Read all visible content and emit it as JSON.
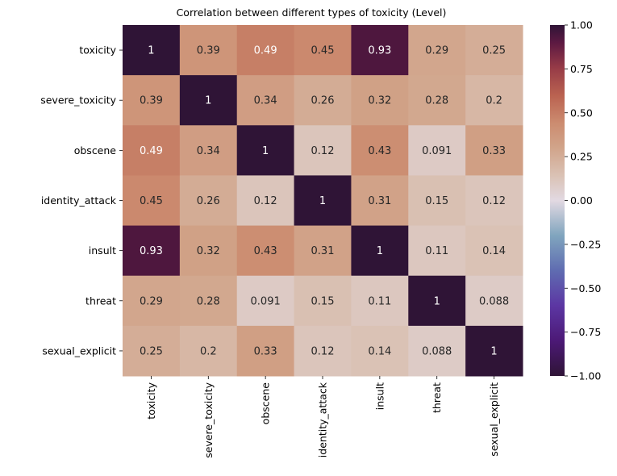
{
  "chart_data": {
    "type": "heatmap",
    "title": "Correlation between different types of toxicity (Level)",
    "xlabel": "",
    "ylabel": "",
    "categories": [
      "toxicity",
      "severe_toxicity",
      "obscene",
      "identity_attack",
      "insult",
      "threat",
      "sexual_explicit"
    ],
    "value_labels": [
      [
        "1",
        "0.39",
        "0.49",
        "0.45",
        "0.93",
        "0.29",
        "0.25"
      ],
      [
        "0.39",
        "1",
        "0.34",
        "0.26",
        "0.32",
        "0.28",
        "0.2"
      ],
      [
        "0.49",
        "0.34",
        "1",
        "0.12",
        "0.43",
        "0.091",
        "0.33"
      ],
      [
        "0.45",
        "0.26",
        "0.12",
        "1",
        "0.31",
        "0.15",
        "0.12"
      ],
      [
        "0.93",
        "0.32",
        "0.43",
        "0.31",
        "1",
        "0.11",
        "0.14"
      ],
      [
        "0.29",
        "0.28",
        "0.091",
        "0.15",
        "0.11",
        "1",
        "0.088"
      ],
      [
        "0.25",
        "0.2",
        "0.33",
        "0.12",
        "0.14",
        "0.088",
        "1"
      ]
    ],
    "colorbar": {
      "range": [
        -1.0,
        1.0
      ],
      "ticks": [
        "1.00",
        "0.75",
        "0.50",
        "0.25",
        "0.00",
        "−0.25",
        "−0.50",
        "−0.75",
        "−1.00"
      ],
      "colormap": "twilight_shifted"
    },
    "grid": false,
    "legend": "colorbar-right"
  }
}
